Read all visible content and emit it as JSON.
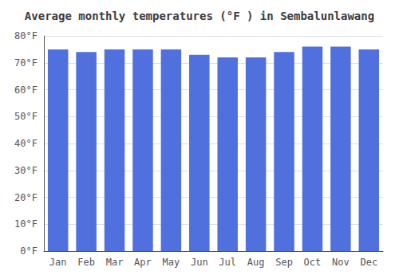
{
  "chart_data": {
    "type": "bar",
    "title": "Average monthly temperatures (°F ) in Sembalunlawang",
    "categories": [
      "Jan",
      "Feb",
      "Mar",
      "Apr",
      "May",
      "Jun",
      "Jul",
      "Aug",
      "Sep",
      "Oct",
      "Nov",
      "Dec"
    ],
    "values": [
      75,
      74,
      75,
      75,
      75,
      73,
      72,
      72,
      74,
      76,
      76,
      75
    ],
    "ylim": [
      0,
      80
    ],
    "yticks": [
      {
        "value": 0,
        "label": "0°F"
      },
      {
        "value": 10,
        "label": "10°F"
      },
      {
        "value": 20,
        "label": "20°F"
      },
      {
        "value": 30,
        "label": "30°F"
      },
      {
        "value": 40,
        "label": "40°F"
      },
      {
        "value": 50,
        "label": "50°F"
      },
      {
        "value": 60,
        "label": "60°F"
      },
      {
        "value": 70,
        "label": "70°F"
      },
      {
        "value": 80,
        "label": "80°F"
      }
    ],
    "grid": true
  }
}
